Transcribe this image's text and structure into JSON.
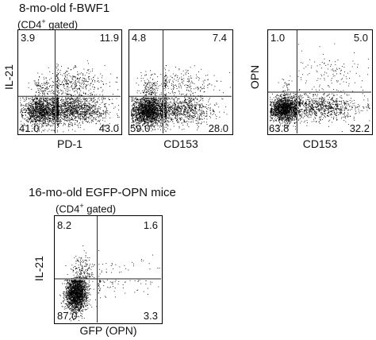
{
  "figure": {
    "cohort_1_title": "8-mo-old f-BWF1",
    "cohort_1_gate_prefix": "(CD4",
    "cohort_1_gate_sup": "+",
    "cohort_1_gate_suffix": " gated)",
    "cohort_2_title": "16-mo-old EGFP-OPN mice",
    "cohort_2_gate_prefix": "(CD4",
    "cohort_2_gate_sup": "+",
    "cohort_2_gate_suffix": " gated)"
  },
  "chart_data": [
    {
      "type": "scatter",
      "plot": "flow-cytometry quadrant dot plot",
      "xlabel": "PD-1",
      "ylabel": "IL-21",
      "quadrant_percentages": {
        "upper_left": "3.9",
        "upper_right": "11.9",
        "lower_left": "41.0",
        "lower_right": "43.0"
      },
      "point_color": "#000000"
    },
    {
      "type": "scatter",
      "plot": "flow-cytometry quadrant dot plot",
      "xlabel": "CD153",
      "ylabel": "",
      "quadrant_percentages": {
        "upper_left": "4.8",
        "upper_right": "7.4",
        "lower_left": "59.0",
        "lower_right": "28.0"
      },
      "point_color": "#000000"
    },
    {
      "type": "scatter",
      "plot": "flow-cytometry quadrant dot plot",
      "xlabel": "CD153",
      "ylabel": "OPN",
      "quadrant_percentages": {
        "upper_left": "1.0",
        "upper_right": "5.0",
        "lower_left": "63.8",
        "lower_right": "32.2"
      },
      "point_color": "#000000"
    },
    {
      "type": "scatter",
      "plot": "flow-cytometry quadrant dot plot",
      "xlabel": "GFP (OPN)",
      "ylabel": "IL-21",
      "quadrant_percentages": {
        "upper_left": "8.2",
        "upper_right": "1.6",
        "lower_left": "87.0",
        "lower_right": "3.3"
      },
      "point_color": "#000000"
    }
  ]
}
